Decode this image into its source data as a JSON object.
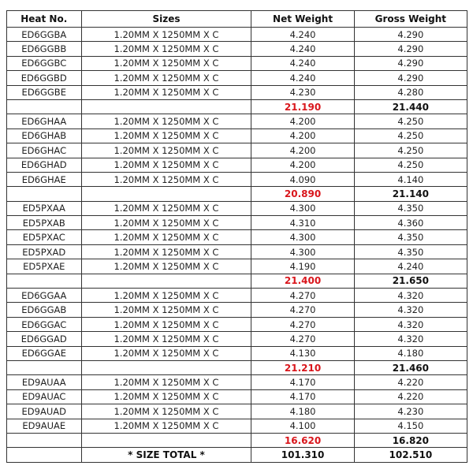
{
  "table": {
    "headers": [
      "Heat No.",
      "Sizes",
      "Net Weight",
      "Gross Weight"
    ],
    "groups": [
      {
        "rows": [
          [
            "ED6GGBA",
            "1.20MM X 1250MM X C",
            "4.240",
            "4.290"
          ],
          [
            "ED6GGBB",
            "1.20MM X 1250MM X C",
            "4.240",
            "4.290"
          ],
          [
            "ED6GGBC",
            "1.20MM X 1250MM X C",
            "4.240",
            "4.290"
          ],
          [
            "ED6GGBD",
            "1.20MM X 1250MM X C",
            "4.240",
            "4.290"
          ],
          [
            "ED6GGBE",
            "1.20MM X 1250MM X C",
            "4.230",
            "4.280"
          ]
        ],
        "subtotal_net": "21.190",
        "subtotal_gross": "21.440"
      },
      {
        "rows": [
          [
            "ED6GHAA",
            "1.20MM X 1250MM X C",
            "4.200",
            "4.250"
          ],
          [
            "ED6GHAB",
            "1.20MM X 1250MM X C",
            "4.200",
            "4.250"
          ],
          [
            "ED6GHAC",
            "1.20MM X 1250MM X C",
            "4.200",
            "4.250"
          ],
          [
            "ED6GHAD",
            "1.20MM X 1250MM X C",
            "4.200",
            "4.250"
          ],
          [
            "ED6GHAE",
            "1.20MM X 1250MM X C",
            "4.090",
            "4.140"
          ]
        ],
        "subtotal_net": "20.890",
        "subtotal_gross": "21.140"
      },
      {
        "rows": [
          [
            "ED5PXAA",
            "1.20MM X 1250MM X C",
            "4.300",
            "4.350"
          ],
          [
            "ED5PXAB",
            "1.20MM X 1250MM X C",
            "4.310",
            "4.360"
          ],
          [
            "ED5PXAC",
            "1.20MM X 1250MM X C",
            "4.300",
            "4.350"
          ],
          [
            "ED5PXAD",
            "1.20MM X 1250MM X C",
            "4.300",
            "4.350"
          ],
          [
            "ED5PXAE",
            "1.20MM X 1250MM X C",
            "4.190",
            "4.240"
          ]
        ],
        "subtotal_net": "21.400",
        "subtotal_gross": "21.650"
      },
      {
        "rows": [
          [
            "ED6GGAA",
            "1.20MM X 1250MM X C",
            "4.270",
            "4.320"
          ],
          [
            "ED6GGAB",
            "1.20MM X 1250MM X C",
            "4.270",
            "4.320"
          ],
          [
            "ED6GGAC",
            "1.20MM X 1250MM X C",
            "4.270",
            "4.320"
          ],
          [
            "ED6GGAD",
            "1.20MM X 1250MM X C",
            "4.270",
            "4.320"
          ],
          [
            "ED6GGAE",
            "1.20MM X 1250MM X C",
            "4.130",
            "4.180"
          ]
        ],
        "subtotal_net": "21.210",
        "subtotal_gross": "21.460"
      },
      {
        "rows": [
          [
            "ED9AUAA",
            "1.20MM X 1250MM X C",
            "4.170",
            "4.220"
          ],
          [
            "ED9AUAC",
            "1.20MM X 1250MM X C",
            "4.170",
            "4.220"
          ],
          [
            "ED9AUAD",
            "1.20MM X 1250MM X C",
            "4.180",
            "4.230"
          ],
          [
            "ED9AUAE",
            "1.20MM X 1250MM X C",
            "4.100",
            "4.150"
          ]
        ],
        "subtotal_net": "16.620",
        "subtotal_gross": "16.820"
      }
    ],
    "total": {
      "label": "* SIZE TOTAL *",
      "net": "101.310",
      "gross": "102.510"
    },
    "colors": {
      "subtotal_net": "#d9161c"
    }
  }
}
